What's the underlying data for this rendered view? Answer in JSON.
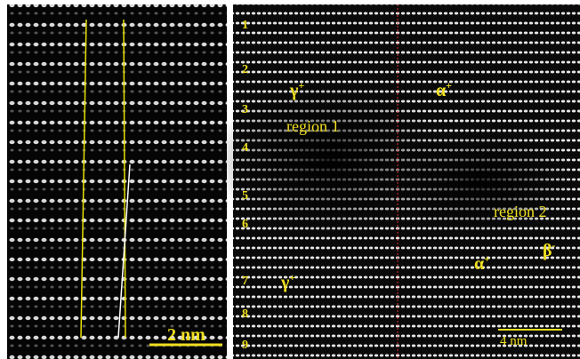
{
  "left_panel": {
    "scale_bar": "2 nm"
  },
  "right_panel": {
    "row_labels": [
      "1",
      "2",
      "3",
      "4",
      "5",
      "6",
      "7",
      "8",
      "9"
    ],
    "phase_labels": [
      {
        "base": "γ",
        "sup": "+"
      },
      {
        "base": "α",
        "sup": "+"
      },
      {
        "base": "β",
        "sup": "-"
      },
      {
        "base": "α",
        "sup": "+"
      },
      {
        "base": "γ",
        "sup": "+"
      }
    ],
    "region_labels": [
      "region 1",
      "region 2"
    ],
    "scale_bar": "4 nm"
  }
}
